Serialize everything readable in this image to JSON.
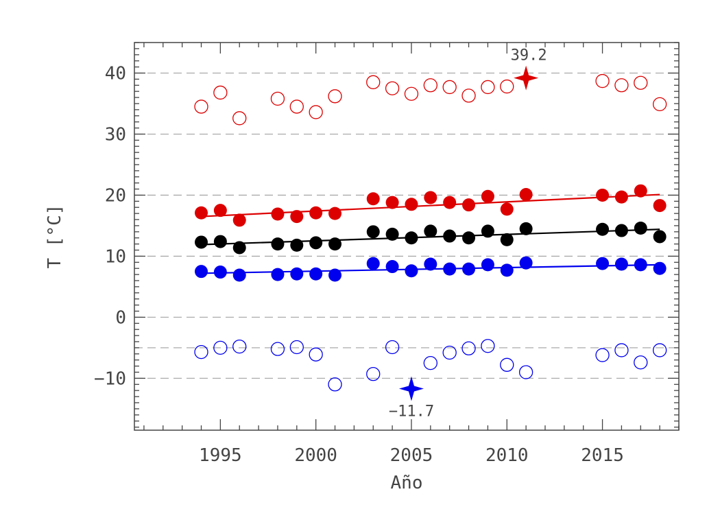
{
  "chart_data": {
    "type": "scatter",
    "title": "",
    "xlabel": "Año",
    "ylabel": "T [°C]",
    "xlim": [
      1990.5,
      2019
    ],
    "ylim": [
      -18.5,
      45
    ],
    "xticks": [
      1995,
      2000,
      2005,
      2010,
      2015
    ],
    "yticks": [
      -10,
      0,
      10,
      20,
      30,
      40
    ],
    "grid": "dashed horizontal lines at y = -10, -5, 0, 10, 20, 30, 40",
    "gridlines": [
      -10,
      -5,
      0,
      10,
      20,
      30,
      40
    ],
    "colors": {
      "red": "#dd0000",
      "black": "#000000",
      "blue": "#0000ee",
      "axis": "#444444",
      "grid": "#aaaaaa"
    },
    "series": [
      {
        "style": "open-circle",
        "color": "#dd0000",
        "x": [
          1994,
          1995,
          1996,
          1998,
          1999,
          2000,
          2001,
          2003,
          2004,
          2005,
          2006,
          2007,
          2008,
          2009,
          2010,
          2015,
          2016,
          2017,
          2018
        ],
        "y": [
          34.5,
          36.8,
          32.6,
          35.8,
          34.5,
          33.6,
          36.2,
          38.5,
          37.5,
          36.6,
          38.0,
          37.7,
          36.3,
          37.7,
          37.8,
          38.7,
          38.0,
          38.4,
          34.9
        ]
      },
      {
        "style": "filled-circle",
        "color": "#dd0000",
        "x": [
          1994,
          1995,
          1996,
          1998,
          1999,
          2000,
          2001,
          2003,
          2004,
          2005,
          2006,
          2007,
          2008,
          2009,
          2010,
          2011,
          2015,
          2016,
          2017,
          2018
        ],
        "y": [
          17.1,
          17.5,
          15.9,
          16.9,
          16.5,
          17.1,
          17.0,
          19.4,
          18.8,
          18.5,
          19.6,
          18.8,
          18.4,
          19.8,
          17.7,
          20.1,
          20.0,
          19.7,
          20.7,
          18.3
        ],
        "trend": {
          "x": [
            1994,
            2018
          ],
          "y": [
            16.5,
            20.1
          ]
        }
      },
      {
        "style": "filled-circle",
        "color": "#000000",
        "x": [
          1994,
          1995,
          1996,
          1998,
          1999,
          2000,
          2001,
          2003,
          2004,
          2005,
          2006,
          2007,
          2008,
          2009,
          2010,
          2011,
          2015,
          2016,
          2017,
          2018
        ],
        "y": [
          12.3,
          12.4,
          11.4,
          12.0,
          11.8,
          12.2,
          12.0,
          14.0,
          13.6,
          13.0,
          14.1,
          13.3,
          13.0,
          14.1,
          12.7,
          14.5,
          14.4,
          14.2,
          14.6,
          13.2
        ],
        "trend": {
          "x": [
            1994,
            2018
          ],
          "y": [
            11.9,
            14.4
          ]
        }
      },
      {
        "style": "filled-circle",
        "color": "#0000ee",
        "x": [
          1994,
          1995,
          1996,
          1998,
          1999,
          2000,
          2001,
          2003,
          2004,
          2005,
          2006,
          2007,
          2008,
          2009,
          2010,
          2011,
          2015,
          2016,
          2017,
          2018
        ],
        "y": [
          7.5,
          7.4,
          6.9,
          7.0,
          7.1,
          7.1,
          6.9,
          8.8,
          8.3,
          7.6,
          8.7,
          7.9,
          7.9,
          8.6,
          7.7,
          8.9,
          8.8,
          8.7,
          8.6,
          8.0
        ],
        "trend": {
          "x": [
            1994,
            2018
          ],
          "y": [
            7.2,
            8.6
          ]
        }
      },
      {
        "style": "open-circle",
        "color": "#0000ee",
        "x": [
          1994,
          1995,
          1996,
          1998,
          1999,
          2000,
          2001,
          2003,
          2004,
          2006,
          2007,
          2008,
          2009,
          2010,
          2011,
          2015,
          2016,
          2017,
          2018
        ],
        "y": [
          -5.7,
          -5.0,
          -4.8,
          -5.2,
          -4.9,
          -6.1,
          -11.0,
          -9.3,
          -4.9,
          -7.5,
          -5.8,
          -5.1,
          -4.7,
          -7.8,
          -9.0,
          -6.2,
          -5.4,
          -7.4,
          -5.4
        ]
      }
    ],
    "extremes": [
      {
        "x": 2011,
        "y": 39.2,
        "label": "39.2",
        "color": "#dd0000",
        "marker": "star"
      },
      {
        "x": 2005,
        "y": -11.7,
        "label": "−11.7",
        "color": "#0000ee",
        "marker": "star"
      }
    ]
  }
}
